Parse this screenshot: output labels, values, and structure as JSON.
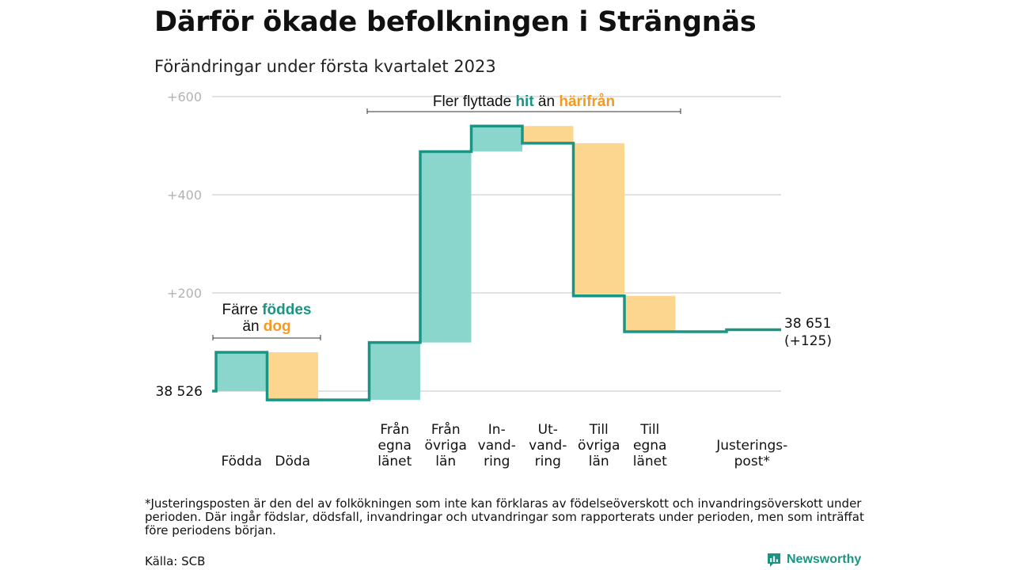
{
  "title": "Därför ökade befolkningen i Strängnäs",
  "subtitle": "Förändringar under första kvartalet 2023",
  "colors": {
    "increase": "#8ad5cc",
    "decrease": "#fcd68e",
    "line": "#1a9583",
    "accent_teal": "#1a9583",
    "accent_orange": "#f49a21",
    "grid": "#d9d9d9",
    "tick": "#b3b3b3"
  },
  "chart_data": {
    "type": "waterfall",
    "ylim": [
      -30,
      620
    ],
    "yticks": [
      0,
      200,
      400,
      600
    ],
    "ytick_labels": [
      "",
      "+200",
      "+400",
      "+600"
    ],
    "start": {
      "value": 0,
      "label": "38 526"
    },
    "end": {
      "value": 125,
      "label_line1": "38 651",
      "label_line2": "(+125)"
    },
    "categories": [
      {
        "lines": [
          "Födda"
        ],
        "change": 79
      },
      {
        "lines": [
          "Döda"
        ],
        "change": -97
      },
      {
        "lines": [
          ""
        ],
        "change": 0
      },
      {
        "lines": [
          "Från",
          "egna",
          "länet"
        ],
        "change": 117
      },
      {
        "lines": [
          "Från",
          "övriga",
          "län"
        ],
        "change": 389
      },
      {
        "lines": [
          "In-",
          "vand-",
          "ring"
        ],
        "change": 52
      },
      {
        "lines": [
          "Ut-",
          "vand-",
          "ring"
        ],
        "change": -35
      },
      {
        "lines": [
          "Till",
          "övriga",
          "län"
        ],
        "change": -311
      },
      {
        "lines": [
          "Till",
          "egna",
          "länet"
        ],
        "change": -73
      },
      {
        "lines": [
          ""
        ],
        "change": 0
      },
      {
        "lines": [
          "Justerings-",
          "post*"
        ],
        "change": 4
      }
    ],
    "annotations": {
      "births": {
        "part1": "Färre ",
        "part2": "föddes",
        "part3": "än ",
        "part4": "dog"
      },
      "migration": {
        "part1": "Fler flyttade ",
        "part2": "hit",
        "part3": " än ",
        "part4": "härifrån"
      }
    }
  },
  "footnote": "*Justeringsposten är den del av folkökningen som inte kan förklaras av födelseöverskott och invandringsöverskott under perioden. Där ingår födslar, dödsfall, invandringar och utvandringar som rapporterats under perioden, men som inträffat före periodens början.",
  "source": "Källa: SCB",
  "brand": {
    "name": "Newsworthy",
    "icon": "bar-chart-logo-icon"
  }
}
